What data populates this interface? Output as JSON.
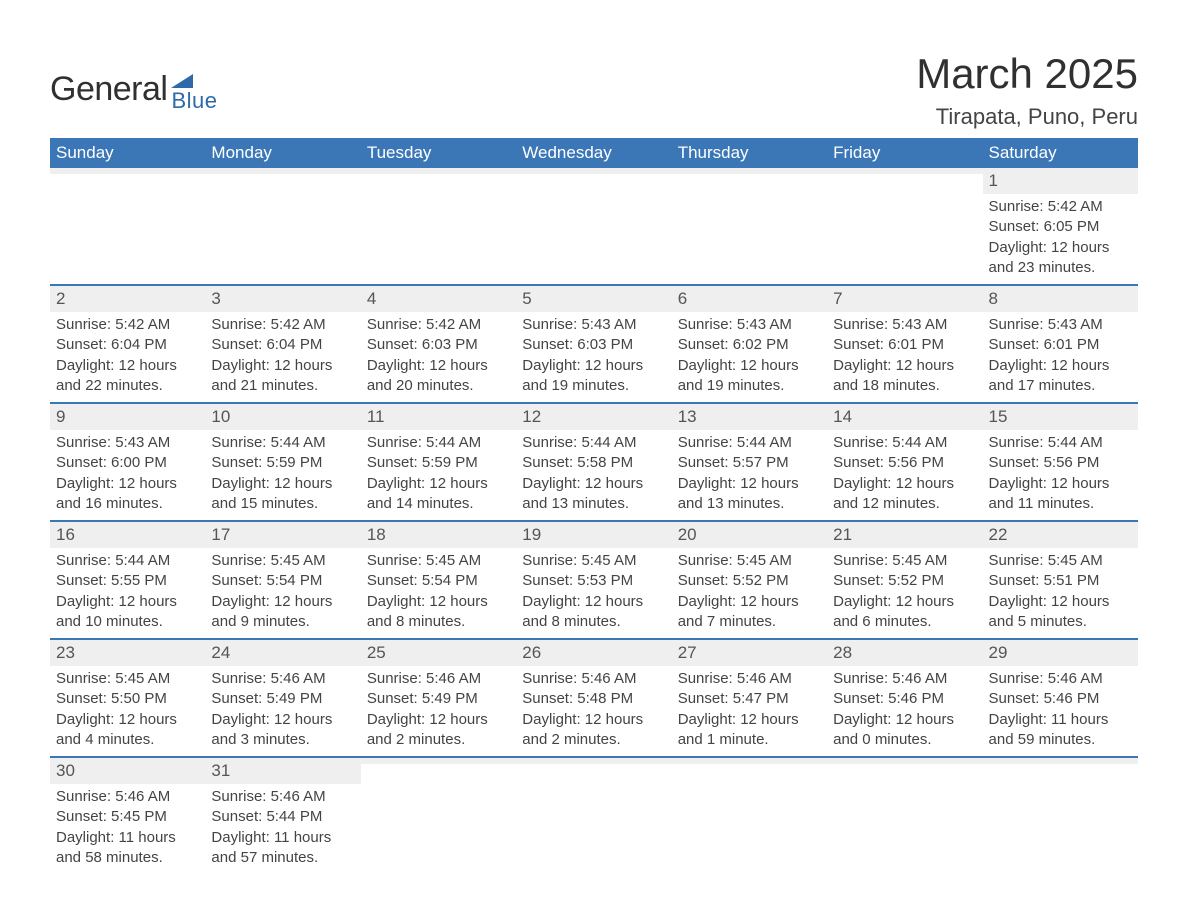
{
  "logo": {
    "text_main": "General",
    "text_sub": "Blue",
    "flag_color": "#2e6aaa",
    "main_color": "#303030",
    "sub_color": "#2e6aaa"
  },
  "header": {
    "month_title": "March 2025",
    "location": "Tirapata, Puno, Peru",
    "title_color": "#303030",
    "location_color": "#444444"
  },
  "colors": {
    "header_bg": "#3b76b7",
    "header_text": "#ffffff",
    "daynum_bg": "#efefef",
    "row_divider": "#3b76b7",
    "body_text": "#444444",
    "background": "#ffffff"
  },
  "typography": {
    "month_title_fontsize": 42,
    "location_fontsize": 22,
    "weekday_fontsize": 17,
    "daynum_fontsize": 17,
    "body_fontsize": 15
  },
  "weekdays": [
    "Sunday",
    "Monday",
    "Tuesday",
    "Wednesday",
    "Thursday",
    "Friday",
    "Saturday"
  ],
  "weeks": [
    [
      {
        "day": "",
        "sunrise": "",
        "sunset": "",
        "daylight": ""
      },
      {
        "day": "",
        "sunrise": "",
        "sunset": "",
        "daylight": ""
      },
      {
        "day": "",
        "sunrise": "",
        "sunset": "",
        "daylight": ""
      },
      {
        "day": "",
        "sunrise": "",
        "sunset": "",
        "daylight": ""
      },
      {
        "day": "",
        "sunrise": "",
        "sunset": "",
        "daylight": ""
      },
      {
        "day": "",
        "sunrise": "",
        "sunset": "",
        "daylight": ""
      },
      {
        "day": "1",
        "sunrise": "Sunrise: 5:42 AM",
        "sunset": "Sunset: 6:05 PM",
        "daylight": "Daylight: 12 hours and 23 minutes."
      }
    ],
    [
      {
        "day": "2",
        "sunrise": "Sunrise: 5:42 AM",
        "sunset": "Sunset: 6:04 PM",
        "daylight": "Daylight: 12 hours and 22 minutes."
      },
      {
        "day": "3",
        "sunrise": "Sunrise: 5:42 AM",
        "sunset": "Sunset: 6:04 PM",
        "daylight": "Daylight: 12 hours and 21 minutes."
      },
      {
        "day": "4",
        "sunrise": "Sunrise: 5:42 AM",
        "sunset": "Sunset: 6:03 PM",
        "daylight": "Daylight: 12 hours and 20 minutes."
      },
      {
        "day": "5",
        "sunrise": "Sunrise: 5:43 AM",
        "sunset": "Sunset: 6:03 PM",
        "daylight": "Daylight: 12 hours and 19 minutes."
      },
      {
        "day": "6",
        "sunrise": "Sunrise: 5:43 AM",
        "sunset": "Sunset: 6:02 PM",
        "daylight": "Daylight: 12 hours and 19 minutes."
      },
      {
        "day": "7",
        "sunrise": "Sunrise: 5:43 AM",
        "sunset": "Sunset: 6:01 PM",
        "daylight": "Daylight: 12 hours and 18 minutes."
      },
      {
        "day": "8",
        "sunrise": "Sunrise: 5:43 AM",
        "sunset": "Sunset: 6:01 PM",
        "daylight": "Daylight: 12 hours and 17 minutes."
      }
    ],
    [
      {
        "day": "9",
        "sunrise": "Sunrise: 5:43 AM",
        "sunset": "Sunset: 6:00 PM",
        "daylight": "Daylight: 12 hours and 16 minutes."
      },
      {
        "day": "10",
        "sunrise": "Sunrise: 5:44 AM",
        "sunset": "Sunset: 5:59 PM",
        "daylight": "Daylight: 12 hours and 15 minutes."
      },
      {
        "day": "11",
        "sunrise": "Sunrise: 5:44 AM",
        "sunset": "Sunset: 5:59 PM",
        "daylight": "Daylight: 12 hours and 14 minutes."
      },
      {
        "day": "12",
        "sunrise": "Sunrise: 5:44 AM",
        "sunset": "Sunset: 5:58 PM",
        "daylight": "Daylight: 12 hours and 13 minutes."
      },
      {
        "day": "13",
        "sunrise": "Sunrise: 5:44 AM",
        "sunset": "Sunset: 5:57 PM",
        "daylight": "Daylight: 12 hours and 13 minutes."
      },
      {
        "day": "14",
        "sunrise": "Sunrise: 5:44 AM",
        "sunset": "Sunset: 5:56 PM",
        "daylight": "Daylight: 12 hours and 12 minutes."
      },
      {
        "day": "15",
        "sunrise": "Sunrise: 5:44 AM",
        "sunset": "Sunset: 5:56 PM",
        "daylight": "Daylight: 12 hours and 11 minutes."
      }
    ],
    [
      {
        "day": "16",
        "sunrise": "Sunrise: 5:44 AM",
        "sunset": "Sunset: 5:55 PM",
        "daylight": "Daylight: 12 hours and 10 minutes."
      },
      {
        "day": "17",
        "sunrise": "Sunrise: 5:45 AM",
        "sunset": "Sunset: 5:54 PM",
        "daylight": "Daylight: 12 hours and 9 minutes."
      },
      {
        "day": "18",
        "sunrise": "Sunrise: 5:45 AM",
        "sunset": "Sunset: 5:54 PM",
        "daylight": "Daylight: 12 hours and 8 minutes."
      },
      {
        "day": "19",
        "sunrise": "Sunrise: 5:45 AM",
        "sunset": "Sunset: 5:53 PM",
        "daylight": "Daylight: 12 hours and 8 minutes."
      },
      {
        "day": "20",
        "sunrise": "Sunrise: 5:45 AM",
        "sunset": "Sunset: 5:52 PM",
        "daylight": "Daylight: 12 hours and 7 minutes."
      },
      {
        "day": "21",
        "sunrise": "Sunrise: 5:45 AM",
        "sunset": "Sunset: 5:52 PM",
        "daylight": "Daylight: 12 hours and 6 minutes."
      },
      {
        "day": "22",
        "sunrise": "Sunrise: 5:45 AM",
        "sunset": "Sunset: 5:51 PM",
        "daylight": "Daylight: 12 hours and 5 minutes."
      }
    ],
    [
      {
        "day": "23",
        "sunrise": "Sunrise: 5:45 AM",
        "sunset": "Sunset: 5:50 PM",
        "daylight": "Daylight: 12 hours and 4 minutes."
      },
      {
        "day": "24",
        "sunrise": "Sunrise: 5:46 AM",
        "sunset": "Sunset: 5:49 PM",
        "daylight": "Daylight: 12 hours and 3 minutes."
      },
      {
        "day": "25",
        "sunrise": "Sunrise: 5:46 AM",
        "sunset": "Sunset: 5:49 PM",
        "daylight": "Daylight: 12 hours and 2 minutes."
      },
      {
        "day": "26",
        "sunrise": "Sunrise: 5:46 AM",
        "sunset": "Sunset: 5:48 PM",
        "daylight": "Daylight: 12 hours and 2 minutes."
      },
      {
        "day": "27",
        "sunrise": "Sunrise: 5:46 AM",
        "sunset": "Sunset: 5:47 PM",
        "daylight": "Daylight: 12 hours and 1 minute."
      },
      {
        "day": "28",
        "sunrise": "Sunrise: 5:46 AM",
        "sunset": "Sunset: 5:46 PM",
        "daylight": "Daylight: 12 hours and 0 minutes."
      },
      {
        "day": "29",
        "sunrise": "Sunrise: 5:46 AM",
        "sunset": "Sunset: 5:46 PM",
        "daylight": "Daylight: 11 hours and 59 minutes."
      }
    ],
    [
      {
        "day": "30",
        "sunrise": "Sunrise: 5:46 AM",
        "sunset": "Sunset: 5:45 PM",
        "daylight": "Daylight: 11 hours and 58 minutes."
      },
      {
        "day": "31",
        "sunrise": "Sunrise: 5:46 AM",
        "sunset": "Sunset: 5:44 PM",
        "daylight": "Daylight: 11 hours and 57 minutes."
      },
      {
        "day": "",
        "sunrise": "",
        "sunset": "",
        "daylight": ""
      },
      {
        "day": "",
        "sunrise": "",
        "sunset": "",
        "daylight": ""
      },
      {
        "day": "",
        "sunrise": "",
        "sunset": "",
        "daylight": ""
      },
      {
        "day": "",
        "sunrise": "",
        "sunset": "",
        "daylight": ""
      },
      {
        "day": "",
        "sunrise": "",
        "sunset": "",
        "daylight": ""
      }
    ]
  ]
}
